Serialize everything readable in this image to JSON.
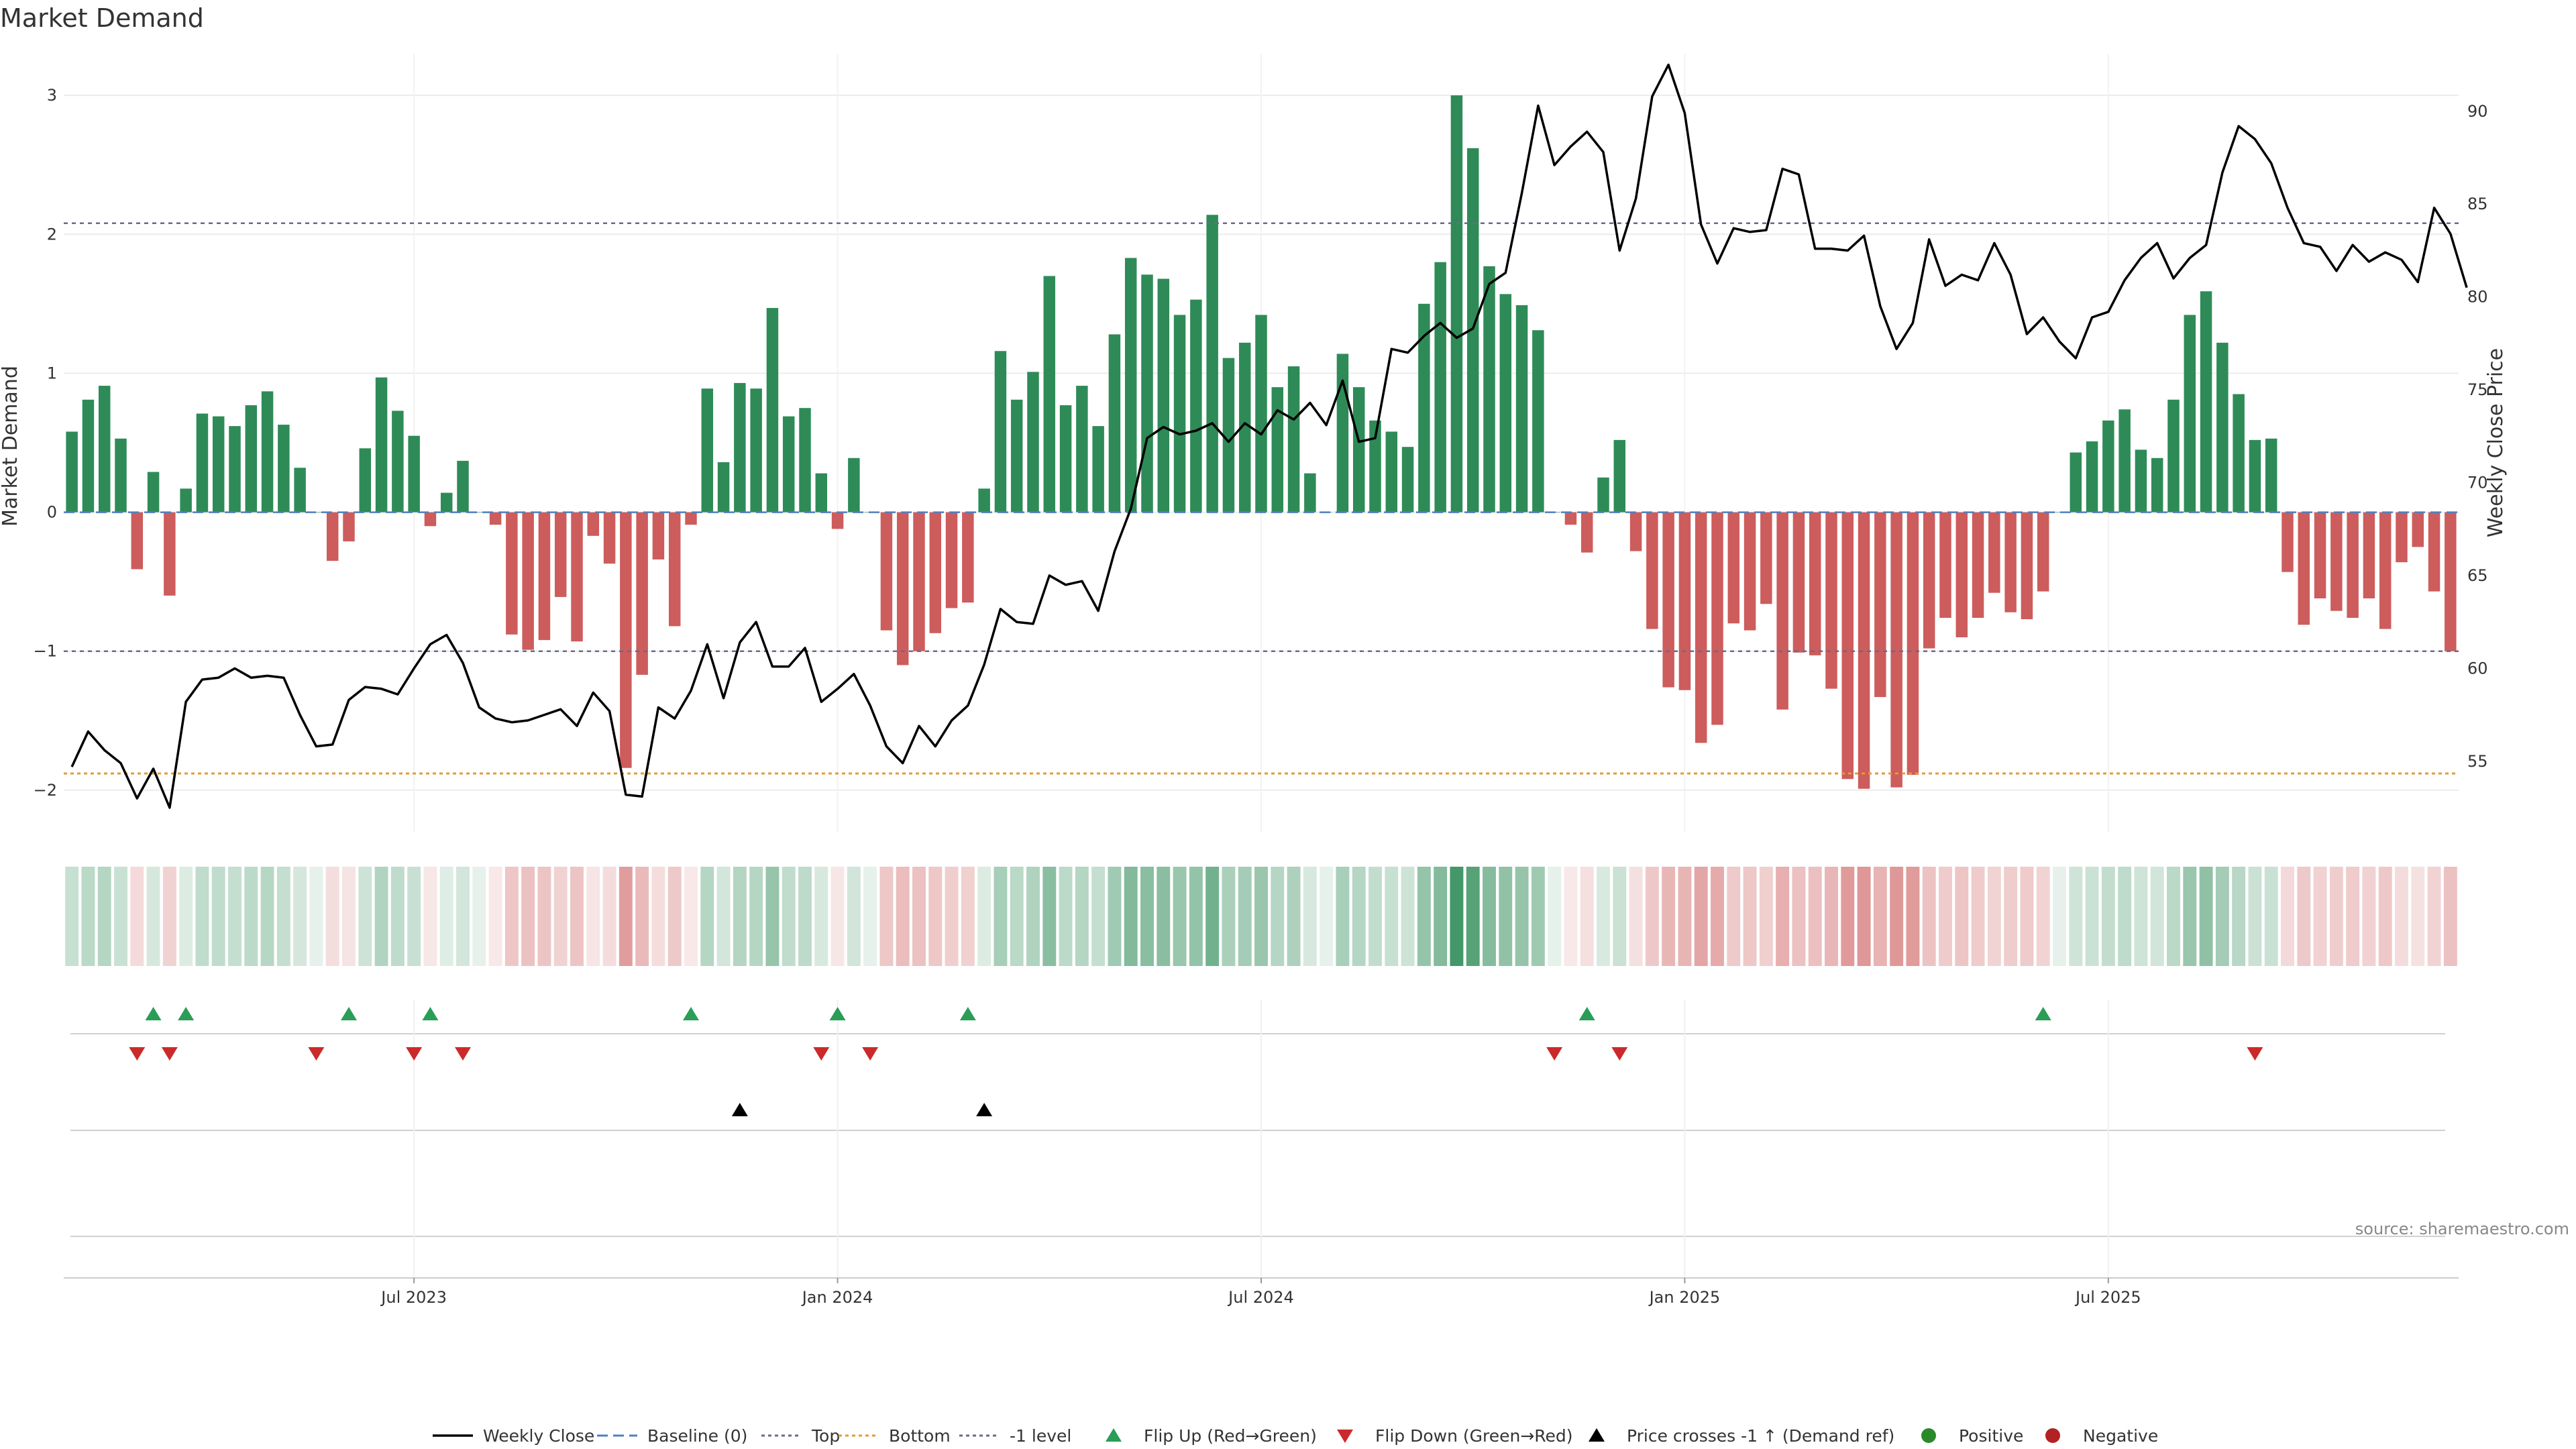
{
  "chart_data": {
    "type": "bar",
    "title": "Market Demand",
    "ylabel_left": "Market Demand",
    "ylabel_right": "Weekly Close Price",
    "left_axis": {
      "range": [
        -2.3,
        3.3
      ],
      "ticks": [
        -2,
        -1,
        0,
        1,
        2,
        3
      ],
      "tick_labels": [
        "−2",
        "−1",
        "0",
        "1",
        "2",
        "3"
      ]
    },
    "right_axis": {
      "range": [
        51.2,
        93.1
      ],
      "ticks": [
        55,
        60,
        65,
        70,
        75,
        80,
        85,
        90
      ],
      "tick_labels": [
        "55",
        "60",
        "65",
        "70",
        "75",
        "80",
        "85",
        "90"
      ]
    },
    "x_ticks": [
      {
        "week_index": 21,
        "label": "Jul 2023"
      },
      {
        "week_index": 47,
        "label": "Jan 2024"
      },
      {
        "week_index": 73,
        "label": "Jul 2024"
      },
      {
        "week_index": 99,
        "label": "Jan 2025"
      },
      {
        "week_index": 125,
        "label": "Jul 2025"
      }
    ],
    "reference_lines": {
      "baseline": 0,
      "top": 2.08,
      "bottom": -1.88,
      "minus_one_level": -1
    },
    "demand": [
      0.58,
      0.81,
      0.91,
      0.53,
      -0.41,
      0.29,
      -0.6,
      0.17,
      0.71,
      0.69,
      0.62,
      0.77,
      0.87,
      0.63,
      0.32,
      0,
      -0.35,
      -0.21,
      0.46,
      0.97,
      0.73,
      0.55,
      -0.1,
      0.14,
      0.37,
      0,
      -0.09,
      -0.88,
      -0.99,
      -0.92,
      -0.61,
      -0.93,
      -0.17,
      -0.37,
      -1.84,
      -1.17,
      -0.34,
      -0.82,
      -0.09,
      0.89,
      0.36,
      0.93,
      0.89,
      1.47,
      0.69,
      0.75,
      0.28,
      -0.12,
      0.39,
      0,
      -0.85,
      -1.1,
      -1.0,
      -0.87,
      -0.69,
      -0.65,
      0.17,
      1.16,
      0.81,
      1.01,
      1.7,
      0.77,
      0.91,
      0.62,
      1.28,
      1.83,
      1.71,
      1.68,
      1.42,
      1.53,
      2.14,
      1.11,
      1.22,
      1.42,
      0.9,
      1.05,
      0.28,
      0,
      1.14,
      0.9,
      0.66,
      0.58,
      0.47,
      1.5,
      1.8,
      3.0,
      2.62,
      1.77,
      1.57,
      1.49,
      1.31,
      0,
      -0.09,
      -0.29,
      0.25,
      0.52,
      -0.28,
      -0.84,
      -1.26,
      -1.28,
      -1.66,
      -1.53,
      -0.8,
      -0.85,
      -0.66,
      -1.42,
      -1.01,
      -1.03,
      -1.27,
      -1.92,
      -1.99,
      -1.33,
      -1.98,
      -1.89,
      -0.98,
      -0.76,
      -0.9,
      -0.76,
      -0.58,
      -0.72,
      -0.77,
      -0.57,
      0,
      0.43,
      0.51,
      0.66,
      0.74,
      0.45,
      0.39,
      0.81,
      1.42,
      1.59,
      1.22,
      0.85,
      0.52,
      0.53,
      -0.43,
      -0.81,
      -0.62,
      -0.71,
      -0.76,
      -0.62,
      -0.84,
      -0.36,
      -0.25,
      -0.57,
      -1.0
    ],
    "weekly_close": [
      54.7,
      56.6,
      55.6,
      54.9,
      53.0,
      54.6,
      52.5,
      58.2,
      59.4,
      59.5,
      60.0,
      59.5,
      59.6,
      59.5,
      57.5,
      55.8,
      55.9,
      58.3,
      59.0,
      58.9,
      58.6,
      60.0,
      61.3,
      61.8,
      60.3,
      57.9,
      57.3,
      57.1,
      57.2,
      57.5,
      57.8,
      56.9,
      58.7,
      57.7,
      53.2,
      53.1,
      57.9,
      57.3,
      58.8,
      61.3,
      58.4,
      61.4,
      62.5,
      60.1,
      60.1,
      61.1,
      58.2,
      58.9,
      59.7,
      58.0,
      55.8,
      54.9,
      56.9,
      55.8,
      57.2,
      58.0,
      60.2,
      63.2,
      62.5,
      62.4,
      65.0,
      64.5,
      64.7,
      63.1,
      66.3,
      68.6,
      72.4,
      73.0,
      72.6,
      72.8,
      73.2,
      72.2,
      73.2,
      72.6,
      73.9,
      73.4,
      74.3,
      73.1,
      75.5,
      72.2,
      72.4,
      77.2,
      77.0,
      77.9,
      78.6,
      77.8,
      78.3,
      80.7,
      81.3,
      85.6,
      90.3,
      87.1,
      88.1,
      88.9,
      87.8,
      82.5,
      85.3,
      90.8,
      92.5,
      89.9,
      83.9,
      81.8,
      83.7,
      83.5,
      83.6,
      86.9,
      86.6,
      82.6,
      82.6,
      82.5,
      83.3,
      79.5,
      77.2,
      78.6,
      83.1,
      80.6,
      81.2,
      80.9,
      82.9,
      81.2,
      78.0,
      78.9,
      77.6,
      76.7,
      78.9,
      79.2,
      80.9,
      82.1,
      82.9,
      81.0,
      82.1,
      82.8,
      86.7,
      89.2,
      88.5,
      87.2,
      84.8,
      82.9,
      82.7,
      81.4,
      82.8,
      81.9,
      82.4,
      82.0,
      80.8,
      84.8,
      83.4,
      80.5
    ],
    "flip_up_indices": [
      5,
      7,
      17,
      22,
      38,
      47,
      55,
      93,
      121
    ],
    "flip_down_indices": [
      4,
      6,
      15,
      21,
      24,
      46,
      49,
      91,
      95,
      134
    ],
    "price_cross_indices": [
      41,
      56
    ],
    "heat_strip": {
      "positive_color": "#2e8b57",
      "negative_color": "#cd5c5c"
    },
    "legend": [
      {
        "label": "Weekly Close",
        "type": "solid-line",
        "color": "#000000"
      },
      {
        "label": "Baseline (0)",
        "type": "dashed-line",
        "color": "#4f7fbf"
      },
      {
        "label": "Top",
        "type": "dotted-line",
        "color": "#6a6a8a"
      },
      {
        "label": "Bottom",
        "type": "dotted-line",
        "color": "#e69a34"
      },
      {
        "label": "-1 level",
        "type": "dotted-line",
        "color": "#6a6a8a"
      },
      {
        "label": "Flip Up (Red→Green)",
        "type": "triangle-up",
        "color": "#2a9d57"
      },
      {
        "label": "Flip Down (Green→Red)",
        "type": "triangle-down",
        "color": "#cc2a2a"
      },
      {
        "label": "Price crosses -1 ↑ (Demand ref)",
        "type": "triangle-up",
        "color": "#000000"
      },
      {
        "label": "Positive",
        "type": "dot",
        "color": "#2a8a2a"
      },
      {
        "label": "Negative",
        "type": "dot",
        "color": "#b22222"
      }
    ],
    "source": "source: sharemaestro.com"
  },
  "colors": {
    "positive_bar": "#2e8b57",
    "negative_bar": "#cd5c5c",
    "price_line": "#000000",
    "flip_up": "#2a9d57",
    "flip_down": "#cc2a2a"
  }
}
